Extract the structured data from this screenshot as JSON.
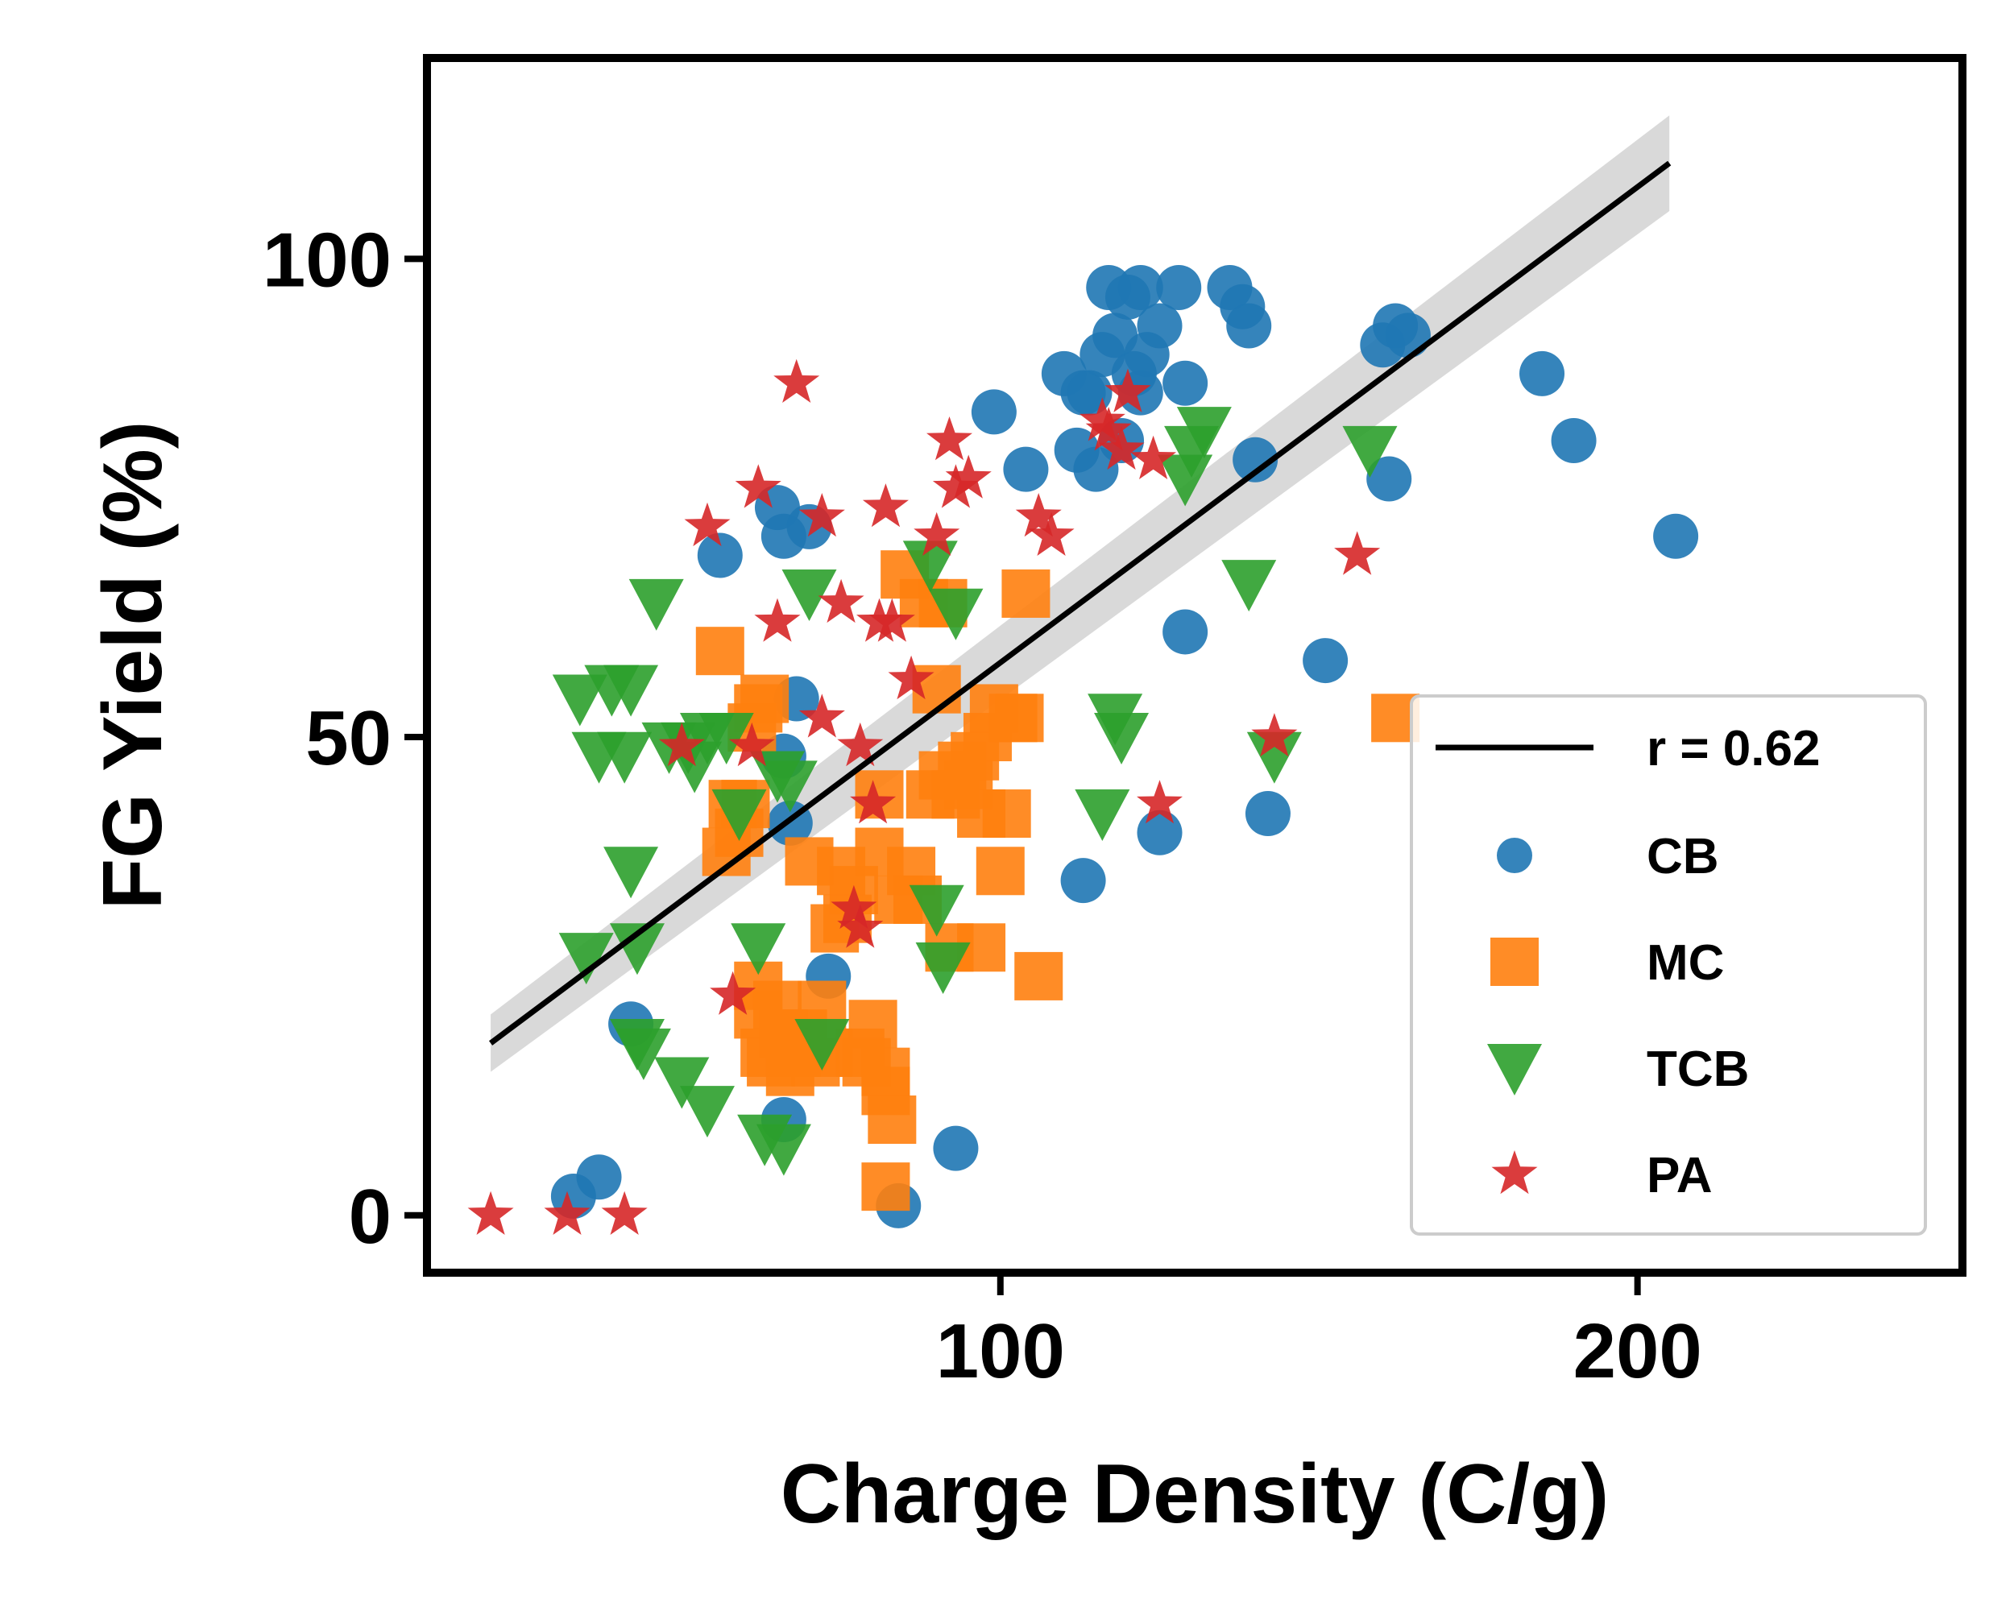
{
  "chart_data": {
    "type": "scatter",
    "xlabel": "Charge Density (C/g)",
    "ylabel": "FG Yield (%)",
    "xlim": [
      10,
      251
    ],
    "ylim": [
      -6,
      121
    ],
    "xticks": [
      100,
      200
    ],
    "yticks": [
      0,
      50,
      100
    ],
    "grid": false,
    "legend_position": "lower-right",
    "fit": {
      "label": "r = 0.62",
      "color": "#000000",
      "band_color": "#d9d9d9",
      "x": [
        20,
        205
      ],
      "y": [
        18,
        110
      ],
      "ci_width": [
        3,
        5
      ]
    },
    "series": [
      {
        "name": "CB",
        "marker": "circle",
        "color": "#1f77b4",
        "points": [
          [
            33,
            2
          ],
          [
            37,
            4
          ],
          [
            42,
            20
          ],
          [
            56,
            69
          ],
          [
            65,
            74
          ],
          [
            66,
            48
          ],
          [
            67,
            41
          ],
          [
            66,
            71
          ],
          [
            68,
            54
          ],
          [
            70,
            72
          ],
          [
            66,
            10
          ],
          [
            73,
            25
          ],
          [
            84,
            1
          ],
          [
            93,
            7
          ],
          [
            99,
            84
          ],
          [
            104,
            78
          ],
          [
            110,
            88
          ],
          [
            112,
            80
          ],
          [
            113,
            86
          ],
          [
            114,
            86
          ],
          [
            115,
            78
          ],
          [
            116,
            90
          ],
          [
            117,
            97
          ],
          [
            118,
            92
          ],
          [
            119,
            81
          ],
          [
            120,
            96
          ],
          [
            122,
            97
          ],
          [
            121,
            88
          ],
          [
            122,
            86
          ],
          [
            123,
            90
          ],
          [
            125,
            93
          ],
          [
            128,
            97
          ],
          [
            129,
            87
          ],
          [
            136,
            97
          ],
          [
            138,
            95
          ],
          [
            139,
            93
          ],
          [
            140,
            79
          ],
          [
            113,
            35
          ],
          [
            129,
            61
          ],
          [
            125,
            40
          ],
          [
            142,
            42
          ],
          [
            151,
            58
          ],
          [
            160,
            91
          ],
          [
            162,
            93
          ],
          [
            164,
            92
          ],
          [
            161,
            77
          ],
          [
            185,
            88
          ],
          [
            190,
            81
          ],
          [
            206,
            71
          ]
        ]
      },
      {
        "name": "MC",
        "marker": "square",
        "color": "#ff7f0e",
        "points": [
          [
            56,
            59
          ],
          [
            57,
            38
          ],
          [
            58,
            43
          ],
          [
            59,
            40
          ],
          [
            60,
            43
          ],
          [
            61,
            51
          ],
          [
            62,
            53
          ],
          [
            63,
            54
          ],
          [
            62,
            24
          ],
          [
            62,
            21
          ],
          [
            63,
            17
          ],
          [
            64,
            16
          ],
          [
            65,
            22
          ],
          [
            66,
            19
          ],
          [
            67,
            15
          ],
          [
            68,
            17
          ],
          [
            69,
            19
          ],
          [
            70,
            37
          ],
          [
            71,
            16
          ],
          [
            72,
            22
          ],
          [
            73,
            17
          ],
          [
            74,
            30
          ],
          [
            75,
            36
          ],
          [
            76,
            31
          ],
          [
            77,
            34
          ],
          [
            78,
            17
          ],
          [
            79,
            16
          ],
          [
            80,
            20
          ],
          [
            81,
            38
          ],
          [
            81,
            44
          ],
          [
            82,
            15
          ],
          [
            82,
            13
          ],
          [
            83,
            10
          ],
          [
            84,
            33
          ],
          [
            85,
            67
          ],
          [
            86,
            36
          ],
          [
            87,
            33
          ],
          [
            88,
            64
          ],
          [
            89,
            44
          ],
          [
            90,
            55
          ],
          [
            91,
            46
          ],
          [
            91,
            64
          ],
          [
            92,
            28
          ],
          [
            93,
            44
          ],
          [
            94,
            47
          ],
          [
            95,
            45
          ],
          [
            96,
            48
          ],
          [
            97,
            42
          ],
          [
            97,
            28
          ],
          [
            98,
            50
          ],
          [
            99,
            53
          ],
          [
            100,
            36
          ],
          [
            101,
            42
          ],
          [
            102,
            52
          ],
          [
            103,
            52
          ],
          [
            104,
            65
          ],
          [
            106,
            25
          ],
          [
            82,
            3
          ],
          [
            162,
            52
          ]
        ]
      },
      {
        "name": "TCB",
        "marker": "triangle-down",
        "color": "#2ca02c",
        "points": [
          [
            34,
            54
          ],
          [
            35,
            27
          ],
          [
            37,
            48
          ],
          [
            39,
            55
          ],
          [
            41,
            48
          ],
          [
            42,
            55
          ],
          [
            42,
            36
          ],
          [
            43,
            28
          ],
          [
            43,
            18
          ],
          [
            44,
            17
          ],
          [
            46,
            64
          ],
          [
            48,
            49
          ],
          [
            50,
            14
          ],
          [
            51,
            49
          ],
          [
            52,
            47
          ],
          [
            54,
            11
          ],
          [
            54,
            50
          ],
          [
            57,
            50
          ],
          [
            59,
            42
          ],
          [
            62,
            28
          ],
          [
            63,
            8
          ],
          [
            65,
            46
          ],
          [
            66,
            7
          ],
          [
            67,
            45
          ],
          [
            70,
            65
          ],
          [
            72,
            18
          ],
          [
            89,
            68
          ],
          [
            90,
            32
          ],
          [
            91,
            26
          ],
          [
            93,
            63
          ],
          [
            118,
            52
          ],
          [
            119,
            50
          ],
          [
            129,
            77
          ],
          [
            130,
            80
          ],
          [
            132,
            82
          ],
          [
            139,
            66
          ],
          [
            143,
            48
          ],
          [
            158,
            80
          ],
          [
            116,
            42
          ]
        ]
      },
      {
        "name": "PA",
        "marker": "star",
        "color": "#d62728",
        "points": [
          [
            20,
            0
          ],
          [
            32,
            0
          ],
          [
            41,
            0
          ],
          [
            50,
            49
          ],
          [
            54,
            72
          ],
          [
            58,
            23
          ],
          [
            61,
            49
          ],
          [
            62,
            76
          ],
          [
            65,
            62
          ],
          [
            68,
            87
          ],
          [
            72,
            52
          ],
          [
            72,
            73
          ],
          [
            75,
            64
          ],
          [
            77,
            32
          ],
          [
            78,
            49
          ],
          [
            78,
            30
          ],
          [
            80,
            43
          ],
          [
            81,
            62
          ],
          [
            82,
            74
          ],
          [
            83,
            62
          ],
          [
            86,
            56
          ],
          [
            90,
            71
          ],
          [
            92,
            81
          ],
          [
            93,
            76
          ],
          [
            95,
            77
          ],
          [
            106,
            73
          ],
          [
            108,
            71
          ],
          [
            116,
            83
          ],
          [
            117,
            82
          ],
          [
            119,
            80
          ],
          [
            120,
            86
          ],
          [
            124,
            79
          ],
          [
            125,
            43
          ],
          [
            143,
            50
          ],
          [
            156,
            69
          ]
        ]
      }
    ]
  }
}
